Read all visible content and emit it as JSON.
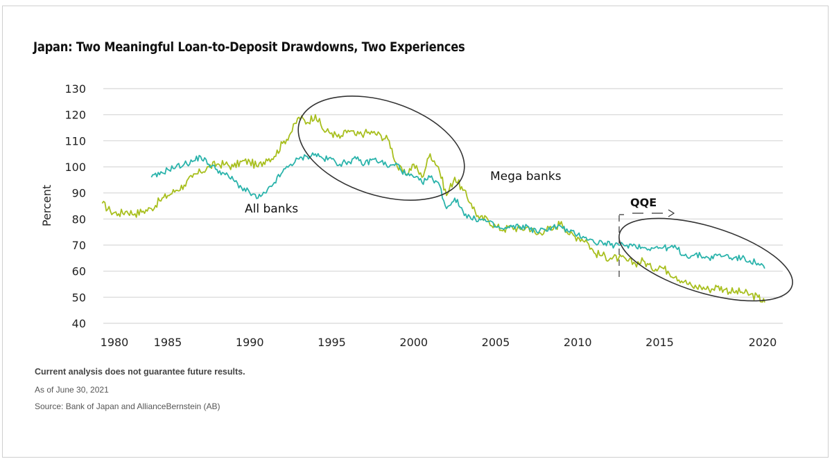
{
  "title": "Japan: Two Meaningful Loan-to-Deposit Drawdowns, Two Experiences",
  "footnotes": {
    "disclaimer": "Current analysis does not guarantee future results.",
    "as_of": "As of June 30, 2021",
    "source": "Source: Bank of Japan and AllianceBernstein (AB)"
  },
  "colors": {
    "mega_banks": "#a8bf1e",
    "all_banks": "#2ab3ab",
    "grid": "#d6d6d6",
    "ellipse": "#333333"
  },
  "chart_data": {
    "type": "line",
    "title": "Japan: Two Meaningful Loan-to-Deposit Drawdowns, Two Experiences",
    "xlabel": "",
    "ylabel": "Percent",
    "ylim": [
      40,
      130
    ],
    "xlim": [
      1980,
      2021.5
    ],
    "grid": true,
    "yticks": [
      40,
      50,
      60,
      70,
      80,
      90,
      100,
      110,
      120,
      130
    ],
    "xticks": [
      "1980",
      "1985",
      "1990",
      "1995",
      "2000",
      "2005",
      "2010",
      "2015",
      "2020"
    ],
    "series": [
      {
        "name": "Mega banks",
        "x": [
          1981.0,
          1981.5,
          1982.0,
          1982.5,
          1983.0,
          1983.5,
          1984.0,
          1984.5,
          1985.0,
          1985.5,
          1986.0,
          1986.5,
          1987.0,
          1987.5,
          1988.0,
          1988.5,
          1989.0,
          1989.5,
          1990.0,
          1990.5,
          1991.0,
          1991.5,
          1992.0,
          1992.5,
          1993.0,
          1993.5,
          1994.0,
          1994.5,
          1995.0,
          1995.5,
          1996.0,
          1996.5,
          1997.0,
          1997.5,
          1998.0,
          1998.5,
          1999.0,
          1999.5,
          2000.0,
          2000.5,
          2001.0,
          2001.5,
          2002.0,
          2002.5,
          2003.0,
          2003.5,
          2004.0,
          2004.5,
          2005.0,
          2005.5,
          2006.0,
          2006.5,
          2007.0,
          2007.5,
          2008.0,
          2008.5,
          2009.0,
          2009.5,
          2010.0,
          2010.5,
          2011.0,
          2011.5,
          2012.0,
          2012.5,
          2013.0,
          2013.5,
          2014.0,
          2014.5,
          2015.0,
          2015.5,
          2016.0,
          2016.5,
          2017.0,
          2017.5,
          2018.0,
          2018.5,
          2019.0,
          2019.5,
          2020.0,
          2020.5,
          2021.0,
          2021.4
        ],
        "values": [
          86,
          83,
          82,
          83,
          82,
          83,
          84,
          87,
          89,
          91,
          93,
          96,
          98,
          100,
          101,
          101,
          100,
          102,
          102,
          100,
          103,
          104,
          109,
          113,
          119,
          117,
          120,
          114,
          113,
          111,
          114,
          112,
          113,
          113,
          112,
          110,
          100,
          97,
          101,
          96,
          105,
          100,
          89,
          96,
          91,
          86,
          80,
          80,
          77,
          76,
          77,
          76,
          77,
          74,
          76,
          76,
          79,
          74,
          73,
          72,
          67,
          66,
          65,
          65,
          64,
          63,
          64,
          61,
          62,
          60,
          58,
          56,
          54,
          54,
          53,
          54,
          53,
          52,
          52,
          51,
          50,
          48
        ]
      },
      {
        "name": "All banks",
        "x": [
          1984.0,
          1984.5,
          1985.0,
          1985.5,
          1986.0,
          1986.5,
          1987.0,
          1987.5,
          1988.0,
          1988.5,
          1989.0,
          1989.5,
          1990.0,
          1990.5,
          1991.0,
          1991.5,
          1992.0,
          1992.5,
          1993.0,
          1993.5,
          1994.0,
          1994.5,
          1995.0,
          1995.5,
          1996.0,
          1996.5,
          1997.0,
          1997.5,
          1998.0,
          1998.5,
          1999.0,
          1999.5,
          2000.0,
          2000.5,
          2001.0,
          2001.5,
          2002.0,
          2002.5,
          2003.0,
          2003.5,
          2004.0,
          2004.5,
          2005.0,
          2005.5,
          2006.0,
          2006.5,
          2007.0,
          2007.5,
          2008.0,
          2008.5,
          2009.0,
          2009.5,
          2010.0,
          2010.5,
          2011.0,
          2011.5,
          2012.0,
          2012.5,
          2013.0,
          2013.5,
          2014.0,
          2014.5,
          2015.0,
          2015.5,
          2016.0,
          2016.5,
          2017.0,
          2017.5,
          2018.0,
          2018.5,
          2019.0,
          2019.5,
          2020.0,
          2020.5,
          2021.0,
          2021.4
        ],
        "values": [
          96,
          97,
          99,
          100,
          101,
          102,
          104,
          101,
          99,
          97,
          95,
          92,
          90,
          88,
          90,
          94,
          98,
          101,
          103,
          104,
          105,
          103,
          103,
          101,
          102,
          103,
          101,
          103,
          102,
          100,
          101,
          97,
          96,
          94,
          96,
          94,
          84,
          88,
          83,
          80,
          80,
          79,
          77,
          76,
          77,
          77,
          77,
          75,
          76,
          77,
          77,
          75,
          74,
          73,
          71,
          71,
          70,
          70,
          70,
          70,
          69,
          69,
          69,
          69,
          69,
          66,
          66,
          66,
          65,
          66,
          66,
          65,
          65,
          64,
          63,
          61
        ]
      }
    ],
    "annotations": [
      {
        "text": "All banks",
        "series": "All banks"
      },
      {
        "text": "Mega banks",
        "series": "Mega banks"
      },
      {
        "text": "QQE",
        "type": "period-marker",
        "start_year": 2011.5
      },
      {
        "type": "ellipse",
        "covers": "1992-2002 drawdown"
      },
      {
        "type": "ellipse",
        "covers": "2012-2021 drawdown"
      }
    ]
  }
}
